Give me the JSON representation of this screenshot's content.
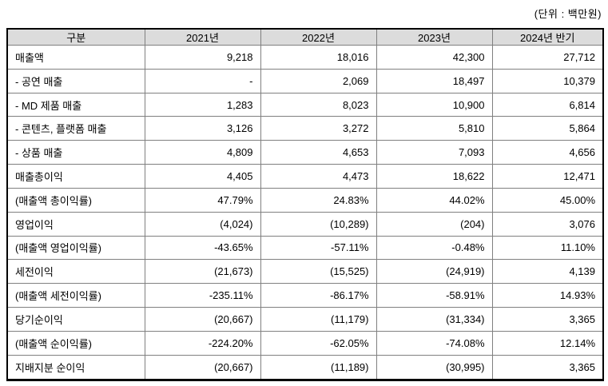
{
  "unit_note": "(단위 : 백만원)",
  "table": {
    "columns": [
      "구분",
      "2021년",
      "2022년",
      "2023년",
      "2024년 반기"
    ],
    "rows": [
      {
        "label": "매출액",
        "values": [
          "9,218",
          "18,016",
          "42,300",
          "27,712"
        ]
      },
      {
        "label": "- 공연 매출",
        "values": [
          "-",
          "2,069",
          "18,497",
          "10,379"
        ]
      },
      {
        "label": "- MD 제품 매출",
        "values": [
          "1,283",
          "8,023",
          "10,900",
          "6,814"
        ]
      },
      {
        "label": "- 콘텐츠, 플랫폼 매출",
        "values": [
          "3,126",
          "3,272",
          "5,810",
          "5,864"
        ]
      },
      {
        "label": "- 상품 매출",
        "values": [
          "4,809",
          "4,653",
          "7,093",
          "4,656"
        ]
      },
      {
        "label": "매출총이익",
        "values": [
          "4,405",
          "4,473",
          "18,622",
          "12,471"
        ]
      },
      {
        "label": "(매출액 총이익률)",
        "values": [
          "47.79%",
          "24.83%",
          "44.02%",
          "45.00%"
        ]
      },
      {
        "label": "영업이익",
        "values": [
          "(4,024)",
          "(10,289)",
          "(204)",
          "3,076"
        ]
      },
      {
        "label": "(매출액 영업이익률)",
        "values": [
          "-43.65%",
          "-57.11%",
          "-0.48%",
          "11.10%"
        ]
      },
      {
        "label": "세전이익",
        "values": [
          "(21,673)",
          "(15,525)",
          "(24,919)",
          "4,139"
        ]
      },
      {
        "label": "(매출액 세전이익률)",
        "values": [
          "-235.11%",
          "-86.17%",
          "-58.91%",
          "14.93%"
        ]
      },
      {
        "label": "당기순이익",
        "values": [
          "(20,667)",
          "(11,179)",
          "(31,334)",
          "3,365"
        ]
      },
      {
        "label": "(매출액 순이익률)",
        "values": [
          "-224.20%",
          "-62.05%",
          "-74.08%",
          "12.14%"
        ]
      },
      {
        "label": "지배지분 순이익",
        "values": [
          "(20,667)",
          "(11,189)",
          "(30,995)",
          "3,365"
        ]
      }
    ]
  },
  "colors": {
    "header_bg": "#dcdcdc",
    "grid_line": "#808080",
    "outer_border": "#000000"
  }
}
